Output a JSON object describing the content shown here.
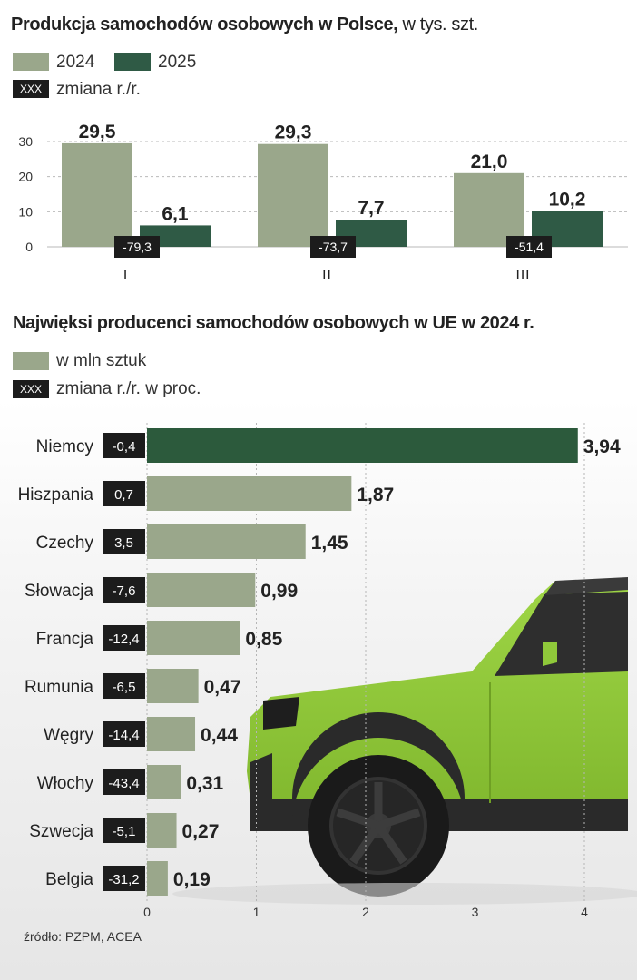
{
  "chart_data": [
    {
      "type": "bar",
      "title": "Produkcja samochodów osobowych w Polsce,",
      "subtitle": "w tys. szt.",
      "categories": [
        "I",
        "II",
        "III"
      ],
      "series": [
        {
          "name": "2024",
          "values": [
            29.5,
            29.3,
            21.0
          ],
          "labels": [
            "29,5",
            "29,3",
            "21,0"
          ]
        },
        {
          "name": "2025",
          "values": [
            6.1,
            7.7,
            10.2
          ],
          "labels": [
            "6,1",
            "7,7",
            "10,2"
          ]
        }
      ],
      "change_legend": "zmiana r./r.",
      "changes": [
        "-79,3",
        "-73,7",
        "-51,4"
      ],
      "y_ticks": [
        "0",
        "10",
        "20",
        "30"
      ],
      "ylim": [
        0,
        30
      ],
      "xlabel": "",
      "ylabel": ""
    },
    {
      "type": "bar",
      "orientation": "horizontal",
      "title": "Najwięksi producenci samochodów osobowych w UE w 2024 r.",
      "series_legend": "w mln sztuk",
      "change_legend": "zmiana r./r. w proc.",
      "categories": [
        "Niemcy",
        "Hiszpania",
        "Czechy",
        "Słowacja",
        "Francja",
        "Rumunia",
        "Węgry",
        "Włochy",
        "Szwecja",
        "Belgia"
      ],
      "values": [
        3.94,
        1.87,
        1.45,
        0.99,
        0.85,
        0.47,
        0.44,
        0.31,
        0.27,
        0.19
      ],
      "value_labels": [
        "3,94",
        "1,87",
        "1,45",
        "0,99",
        "0,85",
        "0,47",
        "0,44",
        "0,31",
        "0,27",
        "0,19"
      ],
      "changes": [
        "-0,4",
        "0,7",
        "3,5",
        "-7,6",
        "-12,4",
        "-6,5",
        "-14,4",
        "-43,4",
        "-5,1",
        "-31,2"
      ],
      "x_ticks": [
        "0",
        "1",
        "2",
        "3",
        "4"
      ],
      "xlim": [
        0,
        4
      ]
    }
  ],
  "legend": {
    "swatch_text": "XXX"
  },
  "source": "źródło: PZPM, ACEA",
  "colors": {
    "c2024": "#9aa78b",
    "c2025": "#2f5a45",
    "highlight": "#2c5a3c",
    "box": "#1c1c1c",
    "car": "#8fc93a"
  }
}
